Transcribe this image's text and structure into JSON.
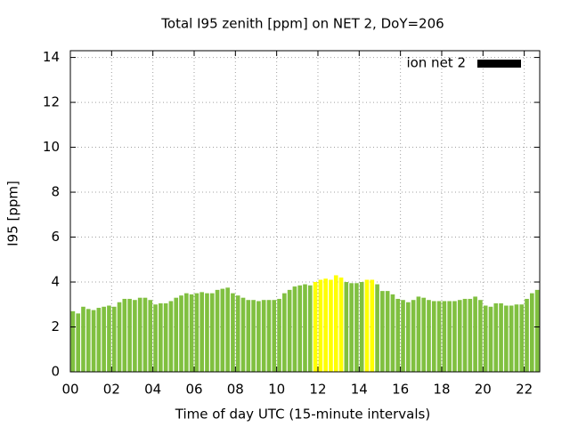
{
  "chart_data": {
    "type": "bar",
    "title": "Total I95 zenith [ppm] on NET 2, DoY=206",
    "x_label": "Time of day UTC (15-minute intervals)",
    "y_label": "I95 [ppm]",
    "xlim": [
      0,
      22.75
    ],
    "xticks": [
      {
        "value": 0,
        "label": "00"
      },
      {
        "value": 2,
        "label": "02"
      },
      {
        "value": 4,
        "label": "04"
      },
      {
        "value": 6,
        "label": "06"
      },
      {
        "value": 8,
        "label": "08"
      },
      10,
      12,
      14,
      16,
      18,
      20,
      22
    ],
    "ylim": [
      0,
      14.3
    ],
    "yticks": [
      0,
      2,
      4,
      6,
      8,
      10,
      12,
      14
    ],
    "grid": true,
    "legend": "top-right",
    "series": [
      {
        "name": "ion net 2",
        "color": "#000000",
        "x": [
          0.125,
          0.375,
          0.625,
          0.875,
          1.125,
          1.375,
          1.625,
          1.875,
          2.125,
          2.375,
          2.625,
          2.875,
          3.125,
          3.375,
          3.625,
          3.875,
          4.125,
          4.375,
          4.625,
          4.875,
          5.125,
          5.375,
          5.625,
          5.875,
          6.125,
          6.375,
          6.625,
          6.875,
          7.125,
          7.375,
          7.625,
          7.875,
          8.125,
          8.375,
          8.625,
          8.875,
          9.125,
          9.375,
          9.625,
          9.875,
          10.125,
          10.375,
          10.625,
          10.875,
          11.125,
          11.375,
          11.625,
          11.875,
          12.125,
          12.375,
          12.625,
          12.875,
          13.125,
          13.375,
          13.625,
          13.875,
          14.125,
          14.375,
          14.625,
          14.875,
          15.125,
          15.375,
          15.625,
          15.875,
          16.125,
          16.375,
          16.625,
          16.875,
          17.125,
          17.375,
          17.625,
          17.875,
          18.125,
          18.375,
          18.625,
          18.875,
          19.125,
          19.375,
          19.625,
          19.875,
          20.125,
          20.375,
          20.625,
          20.875,
          21.125,
          21.375,
          21.625,
          21.875,
          22.125,
          22.375,
          22.625
        ],
        "values": [
          2.7,
          2.6,
          2.9,
          2.8,
          2.75,
          2.85,
          2.9,
          2.95,
          2.9,
          3.1,
          3.25,
          3.25,
          3.2,
          3.3,
          3.3,
          3.2,
          3.0,
          3.05,
          3.05,
          3.15,
          3.3,
          3.4,
          3.5,
          3.45,
          3.5,
          3.55,
          3.5,
          3.5,
          3.65,
          3.7,
          3.75,
          3.5,
          3.4,
          3.3,
          3.2,
          3.2,
          3.15,
          3.2,
          3.2,
          3.2,
          3.25,
          3.5,
          3.65,
          3.8,
          3.85,
          3.9,
          3.85,
          4.0,
          4.1,
          4.15,
          4.1,
          4.3,
          4.2,
          4.0,
          3.95,
          3.95,
          4.0,
          4.1,
          4.1,
          3.9,
          3.6,
          3.6,
          3.45,
          3.25,
          3.2,
          3.1,
          3.2,
          3.35,
          3.3,
          3.2,
          3.15,
          3.15,
          3.15,
          3.15,
          3.15,
          3.2,
          3.25,
          3.25,
          3.35,
          3.2,
          2.95,
          2.9,
          3.05,
          3.05,
          2.95,
          2.95,
          3.0,
          3.0,
          3.25,
          3.5,
          3.65
        ],
        "bar_colors": [
          "#80c040",
          "#80c040",
          "#80c040",
          "#80c040",
          "#80c040",
          "#80c040",
          "#80c040",
          "#80c040",
          "#80c040",
          "#80c040",
          "#80c040",
          "#80c040",
          "#80c040",
          "#80c040",
          "#80c040",
          "#80c040",
          "#80c040",
          "#80c040",
          "#80c040",
          "#80c040",
          "#80c040",
          "#80c040",
          "#80c040",
          "#80c040",
          "#80c040",
          "#80c040",
          "#80c040",
          "#80c040",
          "#80c040",
          "#80c040",
          "#80c040",
          "#80c040",
          "#80c040",
          "#80c040",
          "#80c040",
          "#80c040",
          "#80c040",
          "#80c040",
          "#80c040",
          "#80c040",
          "#80c040",
          "#80c040",
          "#80c040",
          "#80c040",
          "#80c040",
          "#80c040",
          "#80c040",
          "#ffff00",
          "#ffff00",
          "#ffff00",
          "#ffff00",
          "#ffff00",
          "#ffff00",
          "#80c040",
          "#80c040",
          "#80c040",
          "#80c040",
          "#ffff00",
          "#ffff00",
          "#80c040",
          "#80c040",
          "#80c040",
          "#80c040",
          "#80c040",
          "#80c040",
          "#80c040",
          "#80c040",
          "#80c040",
          "#80c040",
          "#80c040",
          "#80c040",
          "#80c040",
          "#80c040",
          "#80c040",
          "#80c040",
          "#80c040",
          "#80c040",
          "#80c040",
          "#80c040",
          "#80c040",
          "#80c040",
          "#80c040",
          "#80c040",
          "#80c040",
          "#80c040",
          "#80c040",
          "#80c040",
          "#80c040",
          "#80c040",
          "#80c040",
          "#80c040"
        ]
      }
    ]
  }
}
